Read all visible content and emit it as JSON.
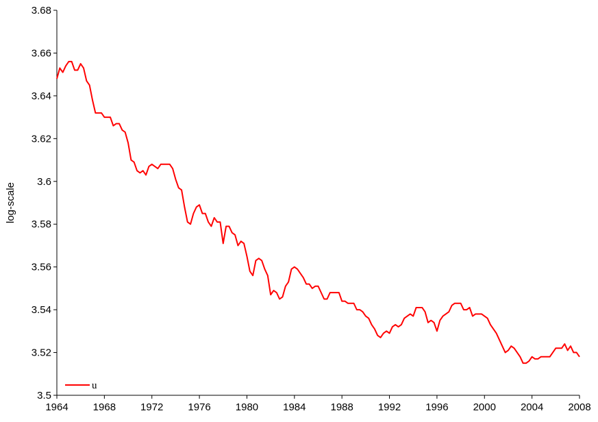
{
  "chart_data": {
    "type": "line",
    "ylabel": "log-scale",
    "xlim": [
      1964,
      2008
    ],
    "xticks": [
      1964,
      1968,
      1972,
      1976,
      1980,
      1984,
      1988,
      1992,
      1996,
      2000,
      2004,
      2008
    ],
    "ylim": [
      3.5,
      3.68
    ],
    "yticks": [
      3.5,
      3.52,
      3.54,
      3.56,
      3.58,
      3.6,
      3.62,
      3.64,
      3.66,
      3.68
    ],
    "grid": false,
    "legend": "lower left",
    "x": [
      1964,
      1964.25,
      1964.5,
      1964.75,
      1965,
      1965.25,
      1965.5,
      1965.75,
      1966,
      1966.25,
      1966.5,
      1966.75,
      1967,
      1967.25,
      1967.5,
      1967.75,
      1968,
      1968.25,
      1968.5,
      1968.75,
      1969,
      1969.25,
      1969.5,
      1969.75,
      1970,
      1970.25,
      1970.5,
      1970.75,
      1971,
      1971.25,
      1971.5,
      1971.75,
      1972,
      1972.25,
      1972.5,
      1972.75,
      1973,
      1973.25,
      1973.5,
      1973.75,
      1974,
      1974.25,
      1974.5,
      1974.75,
      1975,
      1975.25,
      1975.5,
      1975.75,
      1976,
      1976.25,
      1976.5,
      1976.75,
      1977,
      1977.25,
      1977.5,
      1977.75,
      1978,
      1978.25,
      1978.5,
      1978.75,
      1979,
      1979.25,
      1979.5,
      1979.75,
      1980,
      1980.25,
      1980.5,
      1980.75,
      1981,
      1981.25,
      1981.5,
      1981.75,
      1982,
      1982.25,
      1982.5,
      1982.75,
      1983,
      1983.25,
      1983.5,
      1983.75,
      1984,
      1984.25,
      1984.5,
      1984.75,
      1985,
      1985.25,
      1985.5,
      1985.75,
      1986,
      1986.25,
      1986.5,
      1986.75,
      1987,
      1987.25,
      1987.5,
      1987.75,
      1988,
      1988.25,
      1988.5,
      1988.75,
      1989,
      1989.25,
      1989.5,
      1989.75,
      1990,
      1990.25,
      1990.5,
      1990.75,
      1991,
      1991.25,
      1991.5,
      1991.75,
      1992,
      1992.25,
      1992.5,
      1992.75,
      1993,
      1993.25,
      1993.5,
      1993.75,
      1994,
      1994.25,
      1994.5,
      1994.75,
      1995,
      1995.25,
      1995.5,
      1995.75,
      1996,
      1996.25,
      1996.5,
      1996.75,
      1997,
      1997.25,
      1997.5,
      1997.75,
      1998,
      1998.25,
      1998.5,
      1998.75,
      1999,
      1999.25,
      1999.5,
      1999.75,
      2000,
      2000.25,
      2000.5,
      2000.75,
      2001,
      2001.25,
      2001.5,
      2001.75,
      2002,
      2002.25,
      2002.5,
      2002.75,
      2003,
      2003.25,
      2003.5,
      2003.75,
      2004,
      2004.25,
      2004.5,
      2004.75,
      2005,
      2005.25,
      2005.5,
      2005.75,
      2006,
      2006.25,
      2006.5,
      2006.75,
      2007,
      2007.25,
      2007.5,
      2007.75,
      2008
    ],
    "series": [
      {
        "name": "u",
        "color": "#ff0000",
        "values": [
          3.648,
          3.653,
          3.651,
          3.654,
          3.656,
          3.656,
          3.652,
          3.652,
          3.655,
          3.653,
          3.647,
          3.645,
          3.638,
          3.632,
          3.632,
          3.632,
          3.63,
          3.63,
          3.63,
          3.626,
          3.627,
          3.627,
          3.624,
          3.623,
          3.618,
          3.61,
          3.609,
          3.605,
          3.604,
          3.605,
          3.603,
          3.607,
          3.608,
          3.607,
          3.606,
          3.608,
          3.608,
          3.608,
          3.608,
          3.606,
          3.601,
          3.597,
          3.596,
          3.588,
          3.581,
          3.58,
          3.585,
          3.588,
          3.589,
          3.585,
          3.585,
          3.581,
          3.579,
          3.583,
          3.581,
          3.581,
          3.571,
          3.579,
          3.579,
          3.576,
          3.575,
          3.57,
          3.572,
          3.571,
          3.565,
          3.558,
          3.556,
          3.563,
          3.564,
          3.563,
          3.559,
          3.556,
          3.547,
          3.549,
          3.548,
          3.545,
          3.546,
          3.551,
          3.553,
          3.559,
          3.56,
          3.559,
          3.557,
          3.555,
          3.552,
          3.552,
          3.55,
          3.551,
          3.551,
          3.548,
          3.545,
          3.545,
          3.548,
          3.548,
          3.548,
          3.548,
          3.544,
          3.544,
          3.543,
          3.543,
          3.543,
          3.54,
          3.54,
          3.539,
          3.537,
          3.536,
          3.533,
          3.531,
          3.528,
          3.527,
          3.529,
          3.53,
          3.529,
          3.532,
          3.533,
          3.532,
          3.533,
          3.536,
          3.537,
          3.538,
          3.537,
          3.541,
          3.541,
          3.541,
          3.539,
          3.534,
          3.535,
          3.534,
          3.53,
          3.535,
          3.537,
          3.538,
          3.539,
          3.542,
          3.543,
          3.543,
          3.543,
          3.54,
          3.54,
          3.541,
          3.537,
          3.538,
          3.538,
          3.538,
          3.537,
          3.536,
          3.533,
          3.531,
          3.529,
          3.526,
          3.523,
          3.52,
          3.521,
          3.523,
          3.522,
          3.52,
          3.518,
          3.515,
          3.515,
          3.516,
          3.518,
          3.517,
          3.517,
          3.518,
          3.518,
          3.518,
          3.518,
          3.52,
          3.522,
          3.522,
          3.522,
          3.524,
          3.521,
          3.523,
          3.52,
          3.52,
          3.518
        ]
      }
    ]
  }
}
